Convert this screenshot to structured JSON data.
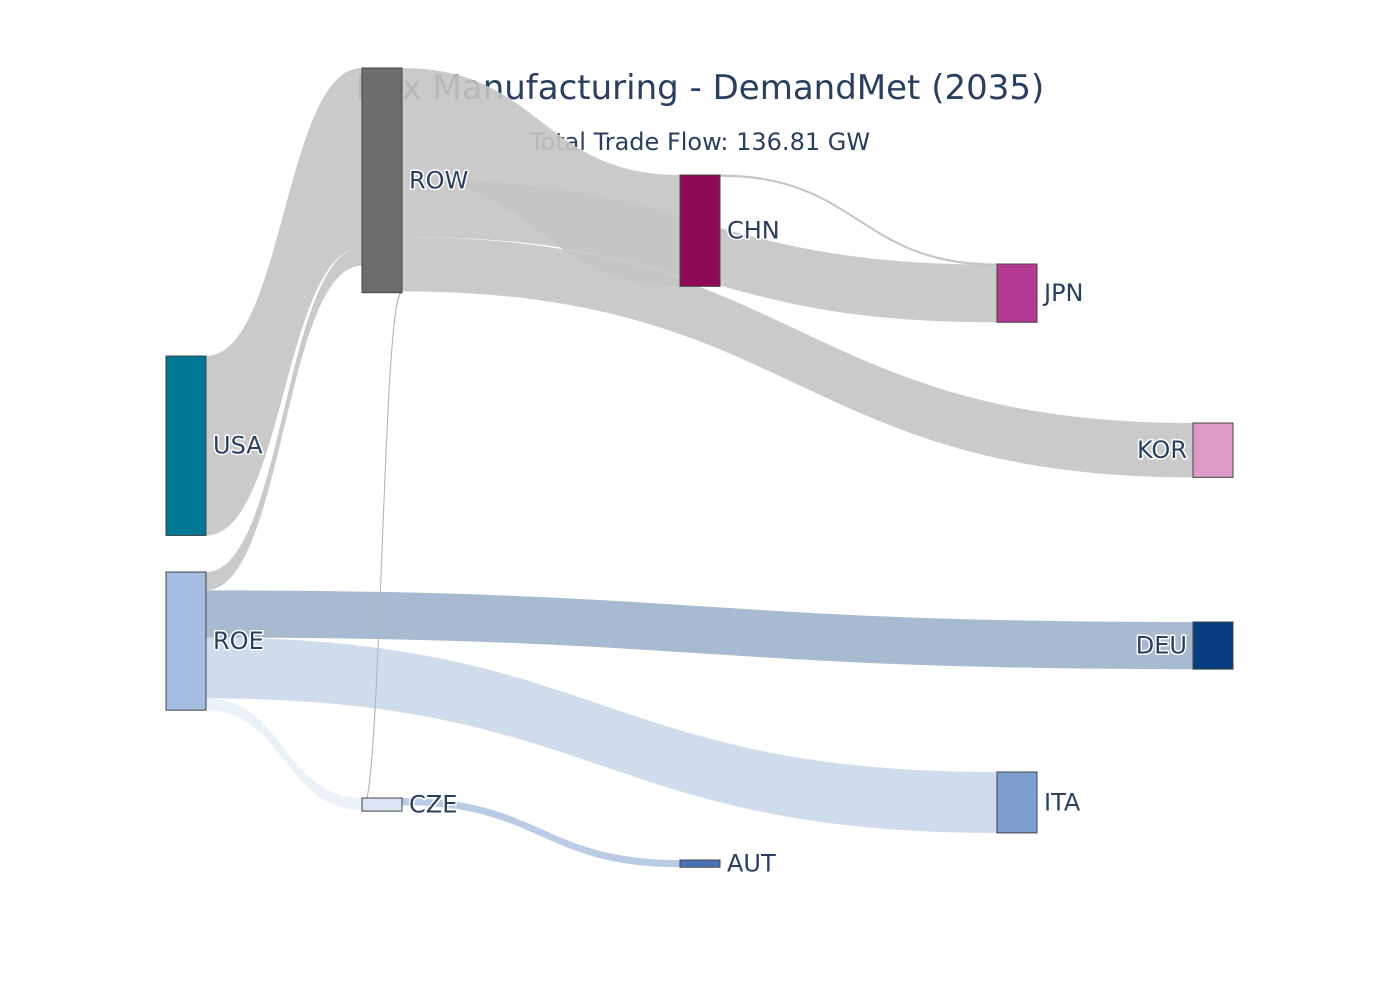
{
  "chart_data": {
    "type": "sankey",
    "title": "Hex Manufacturing - DemandMet (2035)",
    "subtitle": "Total Trade Flow: 136.81 GW",
    "nodes": [
      {
        "id": "USA",
        "label": "USA",
        "color": "#007794"
      },
      {
        "id": "ROE",
        "label": "ROE",
        "color": "#a5bde0"
      },
      {
        "id": "ROW",
        "label": "ROW",
        "color": "#6d6d6d"
      },
      {
        "id": "CZE",
        "label": "CZE",
        "color": "#dbe5f3"
      },
      {
        "id": "CHN",
        "label": "CHN",
        "color": "#8e0a57"
      },
      {
        "id": "AUT",
        "label": "AUT",
        "color": "#4a73b8"
      },
      {
        "id": "JPN",
        "label": "JPN",
        "color": "#b53a93"
      },
      {
        "id": "ITA",
        "label": "ITA",
        "color": "#7b9dcf"
      },
      {
        "id": "KOR",
        "label": "KOR",
        "color": "#dc9bc7"
      },
      {
        "id": "DEU",
        "label": "DEU",
        "color": "#063e80"
      }
    ],
    "links": [
      {
        "source": "USA",
        "target": "ROW",
        "value": 27.4,
        "color": "#c4c4c4"
      },
      {
        "source": "ROE",
        "target": "ROW",
        "value": 2.8,
        "color": "#c4c4c4"
      },
      {
        "source": "ROE",
        "target": "DEU",
        "value": 7.2,
        "color": "#9eb2ca"
      },
      {
        "source": "ROE",
        "target": "ITA",
        "value": 9.3,
        "color": "#c9d8ea"
      },
      {
        "source": "ROE",
        "target": "CZE",
        "value": 1.8,
        "color": "#e9eff8"
      },
      {
        "source": "ROW",
        "target": "CHN",
        "value": 17.0,
        "color": "#c4c4c4"
      },
      {
        "source": "ROW",
        "target": "JPN",
        "value": 8.8,
        "color": "#c4c4c4"
      },
      {
        "source": "ROW",
        "target": "KOR",
        "value": 8.3,
        "color": "#c4c4c4"
      },
      {
        "source": "ROW",
        "target": "CZE",
        "value": 0.2,
        "color": "#b3b3b3"
      },
      {
        "source": "CZE",
        "target": "AUT",
        "value": 1.1,
        "color": "#b3c6e2"
      },
      {
        "source": "CHN",
        "target": "JPN",
        "value": 0.1,
        "color": "#c4c4c4"
      }
    ]
  }
}
